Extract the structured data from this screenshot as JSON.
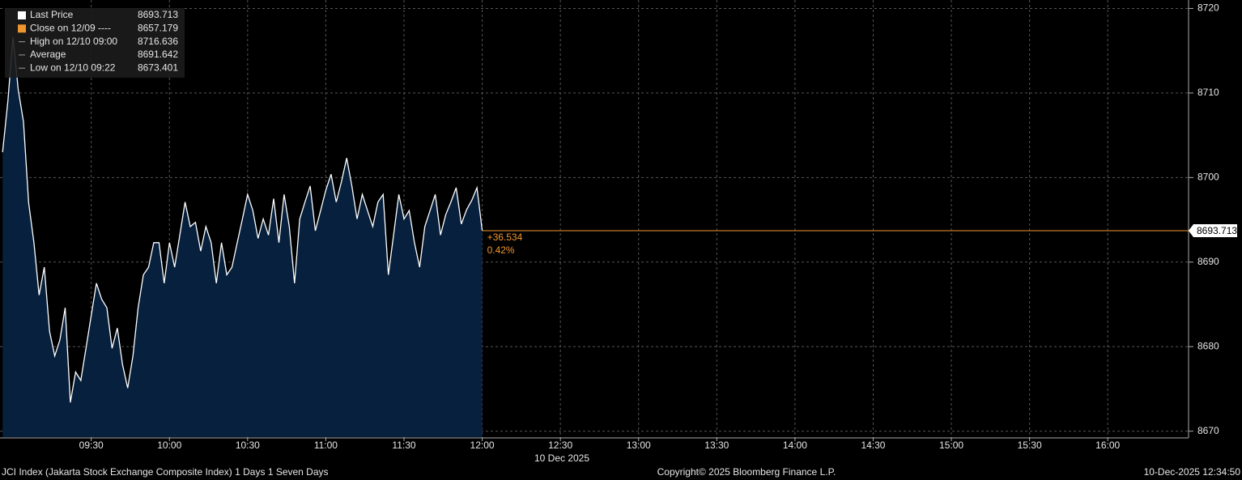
{
  "chart_data": {
    "type": "area",
    "legend": [
      {
        "label": "Last Price",
        "value": 8693.713,
        "color": "#ffffff"
      },
      {
        "label": "Close on 12/09 ----",
        "value": 8657.179,
        "color": "#f0962e"
      },
      {
        "label": "High on 12/10 09:00",
        "value": 8716.636,
        "color": "#999999"
      },
      {
        "label": "Average",
        "value": 8691.642,
        "color": "#999999"
      },
      {
        "label": "Low on 12/10 09:22",
        "value": 8673.401,
        "color": "#999999"
      }
    ],
    "series": [
      {
        "name": "Last Price",
        "color": "#ffffff",
        "fill": "#06203d",
        "x": [
          "08:56",
          "08:58",
          "09:00",
          "09:02",
          "09:04",
          "09:06",
          "09:08",
          "09:10",
          "09:12",
          "09:14",
          "09:16",
          "09:18",
          "09:20",
          "09:22",
          "09:24",
          "09:26",
          "09:28",
          "09:30",
          "09:32",
          "09:34",
          "09:36",
          "09:38",
          "09:40",
          "09:42",
          "09:44",
          "09:46",
          "09:48",
          "09:50",
          "09:52",
          "09:54",
          "09:56",
          "09:58",
          "10:00",
          "10:02",
          "10:04",
          "10:06",
          "10:08",
          "10:10",
          "10:12",
          "10:14",
          "10:16",
          "10:18",
          "10:20",
          "10:22",
          "10:24",
          "10:26",
          "10:28",
          "10:30",
          "10:32",
          "10:34",
          "10:36",
          "10:38",
          "10:40",
          "10:42",
          "10:44",
          "10:46",
          "10:48",
          "10:50",
          "10:52",
          "10:54",
          "10:56",
          "10:58",
          "11:00",
          "11:02",
          "11:04",
          "11:06",
          "11:08",
          "11:10",
          "11:12",
          "11:14",
          "11:16",
          "11:18",
          "11:20",
          "11:22",
          "11:24",
          "11:26",
          "11:28",
          "11:30",
          "11:32",
          "11:34",
          "11:36",
          "11:38",
          "11:40",
          "11:42",
          "11:44",
          "11:46",
          "11:48",
          "11:50",
          "11:52",
          "11:54",
          "11:56",
          "11:58",
          "12:00"
        ],
        "values": [
          8703,
          8709,
          8716.636,
          8710.4,
          8706.6,
          8697,
          8692.3,
          8686.1,
          8689.4,
          8681.8,
          8678.9,
          8680.8,
          8684.6,
          8673.401,
          8677,
          8676,
          8679.8,
          8683.7,
          8687.5,
          8685.6,
          8684.6,
          8679.8,
          8682.2,
          8677.9,
          8675.1,
          8678.9,
          8684.6,
          8688.5,
          8689.4,
          8692.3,
          8692.3,
          8687.5,
          8692.3,
          8689.4,
          8693.2,
          8697.1,
          8694.2,
          8694.7,
          8691.3,
          8694.2,
          8692.3,
          8687.5,
          8692.3,
          8688.5,
          8689.4,
          8692.3,
          8695.1,
          8698,
          8696.1,
          8692.8,
          8695.1,
          8693.2,
          8697.5,
          8692.3,
          8698,
          8694.2,
          8687.5,
          8695.1,
          8697.1,
          8699,
          8693.7,
          8696.1,
          8698.5,
          8700.4,
          8697.1,
          8699.5,
          8702.3,
          8699,
          8695.1,
          8698,
          8696.1,
          8694.2,
          8697.1,
          8698,
          8688.5,
          8693.2,
          8698,
          8695.1,
          8696.1,
          8692.3,
          8689.4,
          8694.2,
          8696.1,
          8698,
          8693.2,
          8695.6,
          8697.1,
          8698.8,
          8694.5,
          8696.2,
          8697.3,
          8698.8,
          8693.713
        ]
      }
    ],
    "last_value": 8693.713,
    "last_color": "#f0962e",
    "change_label": "+36.534",
    "change_pct_label": "0.42%",
    "xlim": [
      "08:55",
      "16:31"
    ],
    "xticks": [
      "09:30",
      "10:00",
      "10:30",
      "11:00",
      "11:30",
      "12:00",
      "12:30",
      "13:00",
      "13:30",
      "14:00",
      "14:30",
      "15:00",
      "15:30",
      "16:00"
    ],
    "x_date_label": "10 Dec 2025",
    "ylim": [
      8669.3,
      8721
    ],
    "yticks": [
      8670,
      8680,
      8690,
      8700,
      8710,
      8720
    ],
    "grid": true,
    "footer_left": "JCI Index (Jakarta Stock Exchange Composite Index) 1 Days 1 Seven Days",
    "footer_center": "Copyright© 2025 Bloomberg Finance L.P.",
    "footer_right": "10-Dec-2025 12:34:50"
  }
}
